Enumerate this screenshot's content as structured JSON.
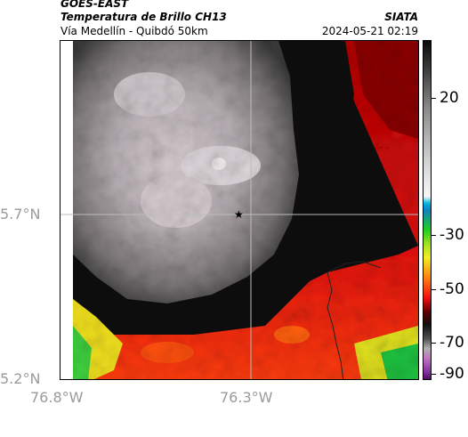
{
  "header": {
    "source": "GOES-EAST",
    "product": "Temperatura de Brillo CH13",
    "region": "Vía Medellín - Quibdó 50km",
    "org": "SIATA",
    "datetime": "2024-05-21 02:19"
  },
  "map": {
    "lat_labels": [
      "5.7°N",
      "5.2°N"
    ],
    "lon_labels": [
      "76.8°W",
      "76.3°W"
    ],
    "marker_icon": "star-icon",
    "field_description": "cold cloud tops grey/white over north-west; warm red/yellow/green band along south; black transition zone east"
  },
  "colorbar": {
    "tick_labels": [
      "20",
      "-30",
      "-50",
      "-70",
      "-90"
    ],
    "colors": [
      "#2b2b2b",
      "#f2f2f2",
      "#1a9fd9",
      "#19d619",
      "#f2f21a",
      "#f21a1a",
      "#1a0000",
      "#a0a0a0",
      "#a040a0"
    ]
  }
}
